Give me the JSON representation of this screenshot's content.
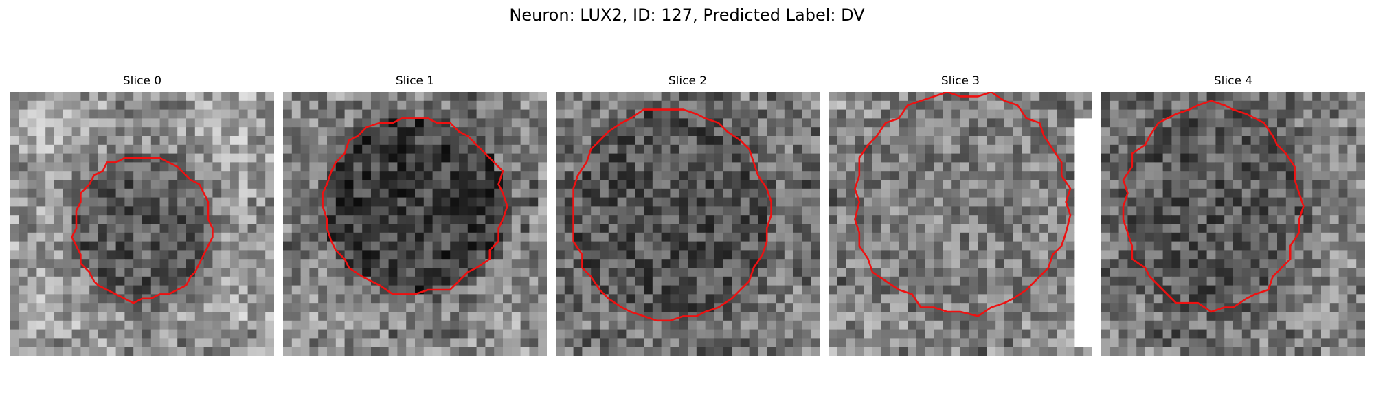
{
  "figure": {
    "title": "Neuron: LUX2, ID: 127, Predicted Label: DV"
  },
  "panels": [
    {
      "title": "Slice 0"
    },
    {
      "title": "Slice 1"
    },
    {
      "title": "Slice 2"
    },
    {
      "title": "Slice 3"
    },
    {
      "title": "Slice 4"
    }
  ],
  "colors": {
    "contour": "#ee1111",
    "background": "#ffffff"
  },
  "image_style": {
    "colormap": "gray",
    "pixel_grid": 30,
    "interior_darkness_by_slice": [
      0.3,
      0.2,
      0.28,
      0.45,
      0.3
    ],
    "surround_brightness_by_slice": [
      0.7,
      0.65,
      0.62,
      0.7,
      0.62
    ]
  }
}
